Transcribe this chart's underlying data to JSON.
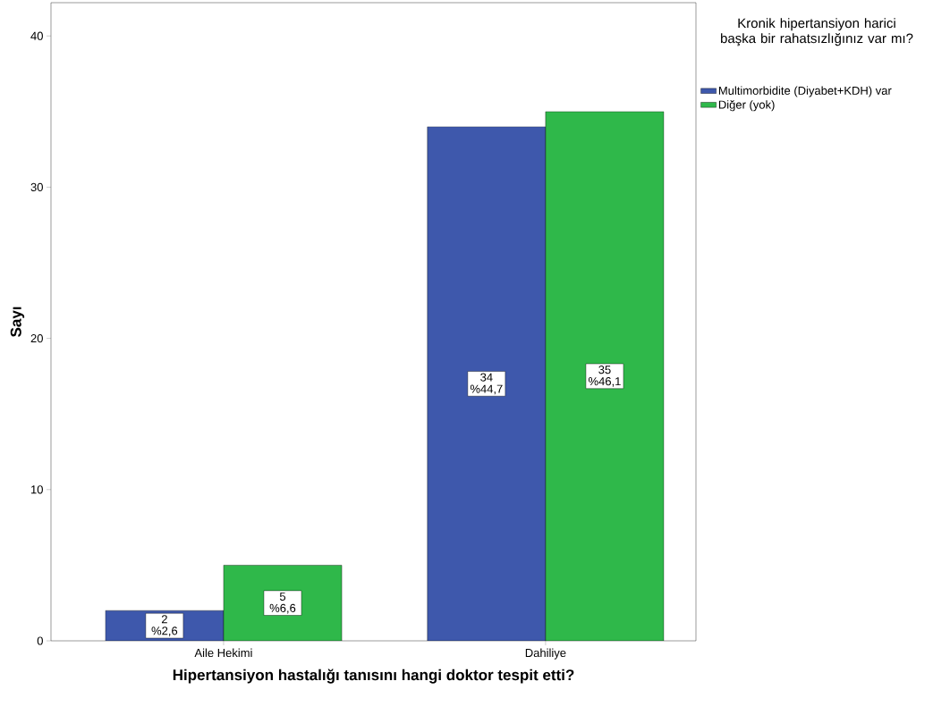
{
  "chart_data": {
    "type": "bar",
    "xlabel": "Hipertansiyon hastalığı tanısını hangi doktor tespit etti?",
    "ylabel": "Sayı",
    "legend_title": "Kronik hipertansiyon harici başka bir rahatsızlığınız var mı?",
    "legend": "right",
    "categories": [
      "Aile Hekimi",
      "Dahiliye"
    ],
    "series": [
      {
        "name": "Multimorbidite (Diyabet+KDH) var",
        "color": "#3e58ac",
        "values": [
          2,
          34
        ],
        "value_labels": [
          "2 %2,6",
          "34 %44,7"
        ]
      },
      {
        "name": "Diğer (yok)",
        "color": "#2fb84a",
        "values": [
          5,
          35
        ],
        "value_labels": [
          "5 %6,6",
          "35 %46,1"
        ]
      }
    ],
    "ylim": [
      0,
      42.2
    ],
    "yticks": [
      0,
      10,
      20,
      30,
      40
    ],
    "grid": false
  }
}
